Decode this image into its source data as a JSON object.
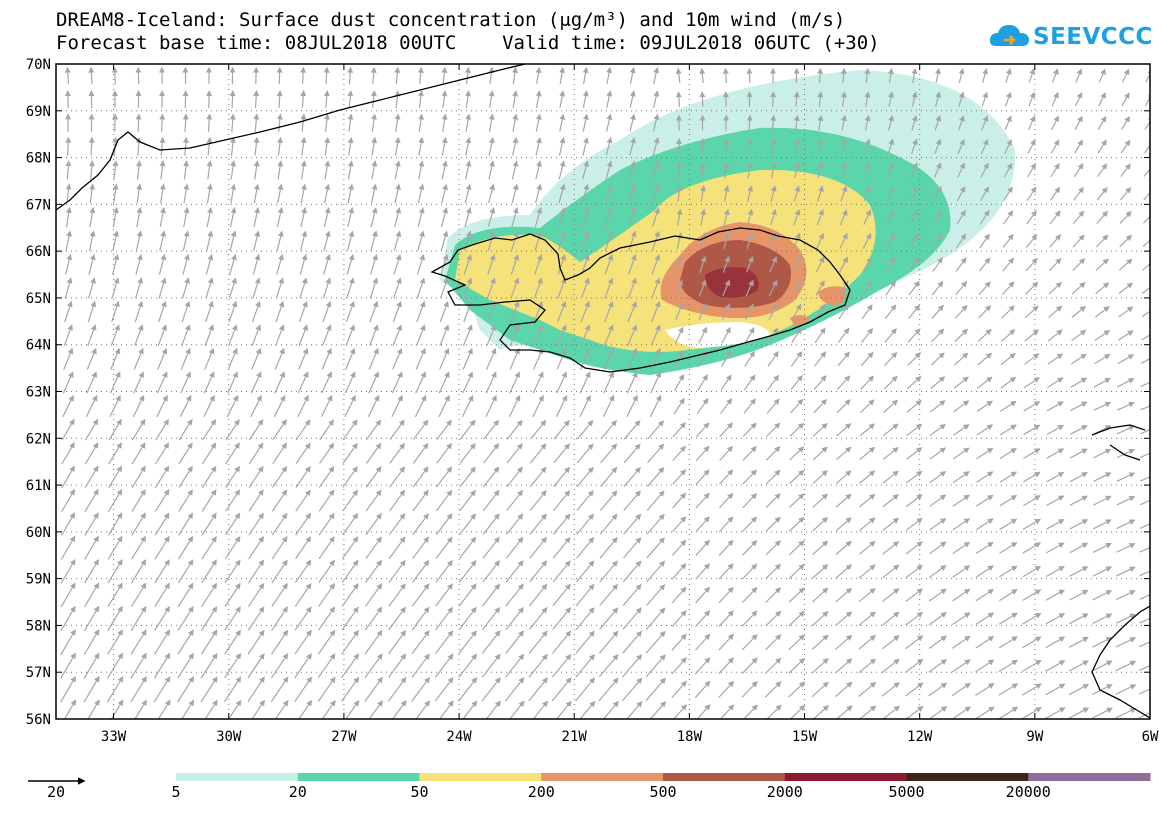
{
  "title": {
    "line1": "DREAM8-Iceland: Surface dust concentration (μg/m³) and 10m wind (m/s)",
    "line2": "Forecast base time: 08JUL2018 00UTC    Valid time: 09JUL2018 06UTC (+30)"
  },
  "logo": {
    "text": "SEEVCCC",
    "color": "#1fa0e0",
    "icon": "cloud-icon"
  },
  "axes": {
    "lat_labels": [
      "70N",
      "69N",
      "68N",
      "67N",
      "66N",
      "65N",
      "64N",
      "63N",
      "62N",
      "61N",
      "60N",
      "59N",
      "58N",
      "57N",
      "56N"
    ],
    "lon_labels": [
      "33W",
      "30W",
      "27W",
      "24W",
      "21W",
      "18W",
      "15W",
      "12W",
      "9W",
      "6W"
    ],
    "lat_range": [
      56,
      70
    ],
    "lon_range": [
      -34.5,
      -6
    ]
  },
  "legend": {
    "vector_ref": {
      "value": "20",
      "icon": "wind-arrow-icon"
    },
    "thresholds": [
      "5",
      "20",
      "50",
      "200",
      "500",
      "2000",
      "5000",
      "20000"
    ],
    "colors": [
      "#c9efe8",
      "#5ad6aa",
      "#f5e27a",
      "#e69468",
      "#b05848",
      "#8a1a34",
      "#3d2618",
      "#946c9c"
    ]
  },
  "colors": {
    "arrow": "#a6a6a6",
    "coast": "#000000"
  }
}
